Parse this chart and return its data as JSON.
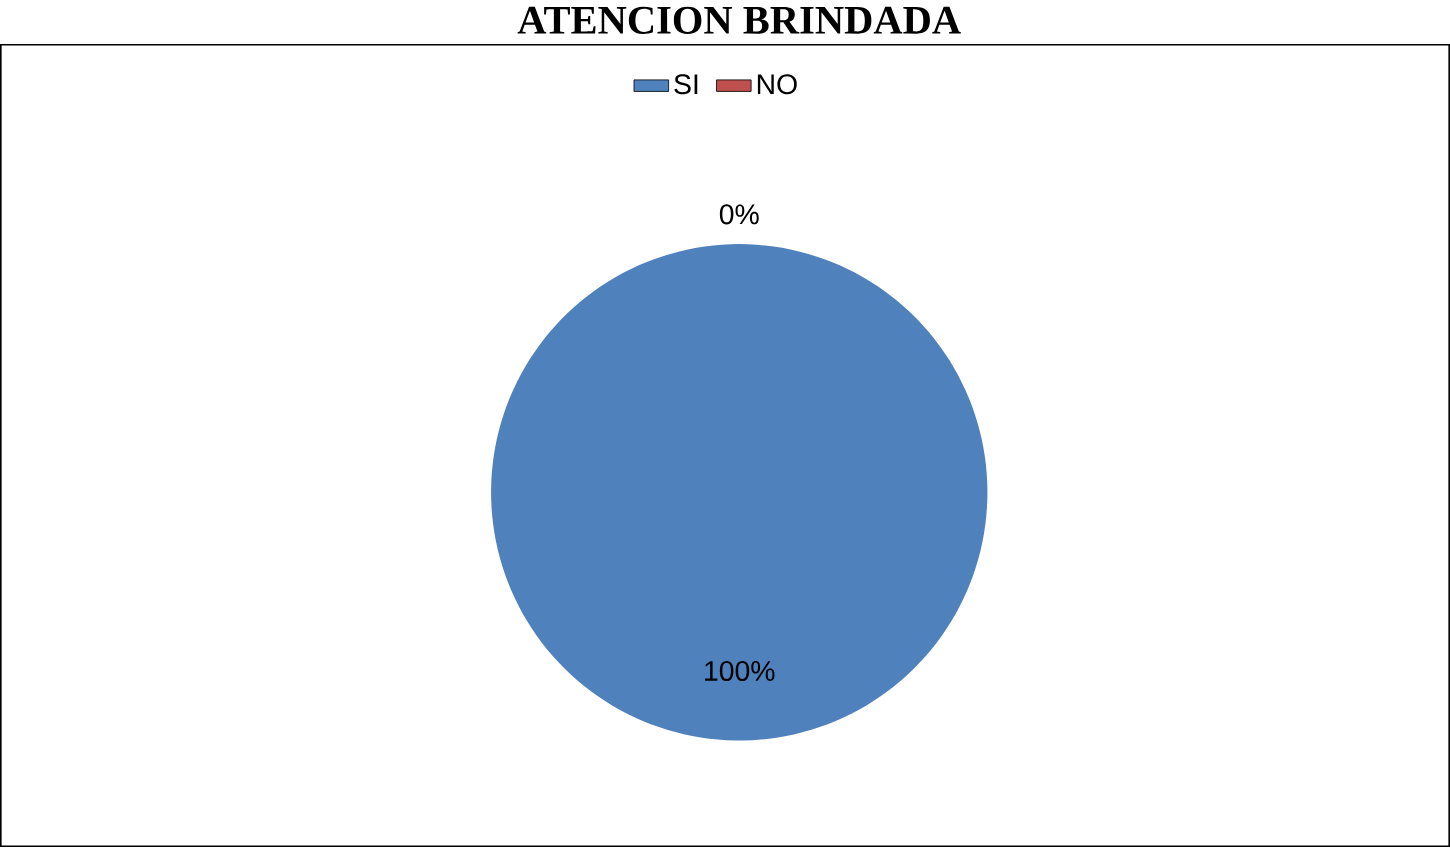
{
  "chart_data": {
    "type": "pie",
    "title": "ATENCION BRINDADA",
    "categories": [
      "SI",
      "NO"
    ],
    "values": [
      100,
      0
    ],
    "colors": [
      "#4f81bd",
      "#c0504d"
    ],
    "value_labels": [
      "100%",
      "0%"
    ],
    "legend": "top"
  }
}
